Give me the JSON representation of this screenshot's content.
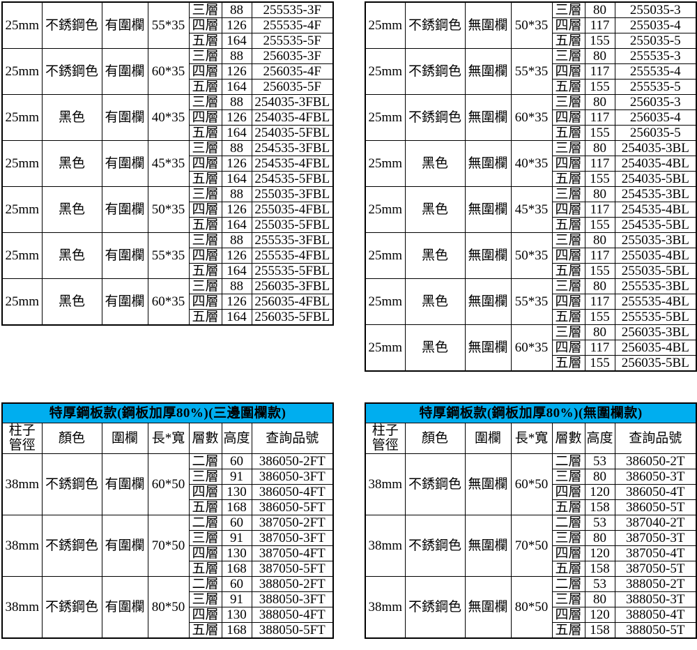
{
  "styles": {
    "title_bar_bg": "#00AEEF",
    "title_text_color": "#000000",
    "border_color": "#000000",
    "page_bg": "#ffffff"
  },
  "tables": {
    "top_left": {
      "rows": [
        {
          "diameter": "25mm",
          "color": "不銹鋼色",
          "fence": "有圍欄",
          "size": "55*35",
          "layers": [
            {
              "tier": "三層",
              "height": "88",
              "code": "255535-3F"
            },
            {
              "tier": "四層",
              "height": "126",
              "code": "255535-4F"
            },
            {
              "tier": "五層",
              "height": "164",
              "code": "255535-5F"
            }
          ]
        },
        {
          "diameter": "25mm",
          "color": "不銹鋼色",
          "fence": "有圍欄",
          "size": "60*35",
          "layers": [
            {
              "tier": "三層",
              "height": "88",
              "code": "256035-3F"
            },
            {
              "tier": "四層",
              "height": "126",
              "code": "256035-4F"
            },
            {
              "tier": "五層",
              "height": "164",
              "code": "256035-5F"
            }
          ]
        },
        {
          "diameter": "25mm",
          "color": "黑色",
          "fence": "有圍欄",
          "size": "40*35",
          "layers": [
            {
              "tier": "三層",
              "height": "88",
              "code": "254035-3FBL"
            },
            {
              "tier": "四層",
              "height": "126",
              "code": "254035-4FBL"
            },
            {
              "tier": "五層",
              "height": "164",
              "code": "254035-5FBL"
            }
          ]
        },
        {
          "diameter": "25mm",
          "color": "黑色",
          "fence": "有圍欄",
          "size": "45*35",
          "layers": [
            {
              "tier": "三層",
              "height": "88",
              "code": "254535-3FBL"
            },
            {
              "tier": "四層",
              "height": "126",
              "code": "254535-4FBL"
            },
            {
              "tier": "五層",
              "height": "164",
              "code": "254535-5FBL"
            }
          ]
        },
        {
          "diameter": "25mm",
          "color": "黑色",
          "fence": "有圍欄",
          "size": "50*35",
          "layers": [
            {
              "tier": "三層",
              "height": "88",
              "code": "255035-3FBL"
            },
            {
              "tier": "四層",
              "height": "126",
              "code": "255035-4FBL"
            },
            {
              "tier": "五層",
              "height": "164",
              "code": "255035-5FBL"
            }
          ]
        },
        {
          "diameter": "25mm",
          "color": "黑色",
          "fence": "有圍欄",
          "size": "55*35",
          "layers": [
            {
              "tier": "三層",
              "height": "88",
              "code": "255535-3FBL"
            },
            {
              "tier": "四層",
              "height": "126",
              "code": "255535-4FBL"
            },
            {
              "tier": "五層",
              "height": "164",
              "code": "255535-5FBL"
            }
          ]
        },
        {
          "diameter": "25mm",
          "color": "黑色",
          "fence": "有圍欄",
          "size": "60*35",
          "layers": [
            {
              "tier": "三層",
              "height": "88",
              "code": "256035-3FBL"
            },
            {
              "tier": "四層",
              "height": "126",
              "code": "256035-4FBL"
            },
            {
              "tier": "五層",
              "height": "164",
              "code": "256035-5FBL"
            }
          ]
        }
      ]
    },
    "top_right": {
      "rows": [
        {
          "diameter": "25mm",
          "color": "不銹鋼色",
          "fence": "無圍欄",
          "size": "50*35",
          "layers": [
            {
              "tier": "三層",
              "height": "80",
              "code": "255035-3"
            },
            {
              "tier": "四層",
              "height": "117",
              "code": "255035-4"
            },
            {
              "tier": "五層",
              "height": "155",
              "code": "255035-5"
            }
          ]
        },
        {
          "diameter": "25mm",
          "color": "不銹鋼色",
          "fence": "無圍欄",
          "size": "55*35",
          "layers": [
            {
              "tier": "三層",
              "height": "80",
              "code": "255535-3"
            },
            {
              "tier": "四層",
              "height": "117",
              "code": "255535-4"
            },
            {
              "tier": "五層",
              "height": "155",
              "code": "255535-5"
            }
          ]
        },
        {
          "diameter": "25mm",
          "color": "不銹鋼色",
          "fence": "無圍欄",
          "size": "60*35",
          "layers": [
            {
              "tier": "三層",
              "height": "80",
              "code": "256035-3"
            },
            {
              "tier": "四層",
              "height": "117",
              "code": "256035-4"
            },
            {
              "tier": "五層",
              "height": "155",
              "code": "256035-5"
            }
          ]
        },
        {
          "diameter": "25mm",
          "color": "黑色",
          "fence": "無圍欄",
          "size": "40*35",
          "layers": [
            {
              "tier": "三層",
              "height": "80",
              "code": "254035-3BL"
            },
            {
              "tier": "四層",
              "height": "117",
              "code": "254035-4BL"
            },
            {
              "tier": "五層",
              "height": "155",
              "code": "254035-5BL"
            }
          ]
        },
        {
          "diameter": "25mm",
          "color": "黑色",
          "fence": "無圍欄",
          "size": "45*35",
          "layers": [
            {
              "tier": "三層",
              "height": "80",
              "code": "254535-3BL"
            },
            {
              "tier": "四層",
              "height": "117",
              "code": "254535-4BL"
            },
            {
              "tier": "五層",
              "height": "155",
              "code": "254535-5BL"
            }
          ]
        },
        {
          "diameter": "25mm",
          "color": "黑色",
          "fence": "無圍欄",
          "size": "50*35",
          "layers": [
            {
              "tier": "三層",
              "height": "80",
              "code": "255035-3BL"
            },
            {
              "tier": "四層",
              "height": "117",
              "code": "255035-4BL"
            },
            {
              "tier": "五層",
              "height": "155",
              "code": "255035-5BL"
            }
          ]
        },
        {
          "diameter": "25mm",
          "color": "黑色",
          "fence": "無圍欄",
          "size": "55*35",
          "layers": [
            {
              "tier": "三層",
              "height": "80",
              "code": "255535-3BL"
            },
            {
              "tier": "四層",
              "height": "117",
              "code": "255535-4BL"
            },
            {
              "tier": "五層",
              "height": "155",
              "code": "255535-5BL"
            }
          ]
        },
        {
          "diameter": "25mm",
          "color": "黑色",
          "fence": "無圍欄",
          "size": "60*35",
          "layers": [
            {
              "tier": "三層",
              "height": "80",
              "code": "256035-3BL"
            },
            {
              "tier": "四層",
              "height": "117",
              "code": "256035-4BL"
            },
            {
              "tier": "五層",
              "height": "155",
              "code": "256035-5BL"
            }
          ]
        }
      ]
    },
    "bottom_left": {
      "title": "特厚鋼板款(鋼板加厚80%)(三邊圍欄款)",
      "columns": [
        "柱子\n管徑",
        "顏色",
        "圍欄",
        "長*寬",
        "層數",
        "高度",
        "查詢品號"
      ],
      "rows": [
        {
          "diameter": "38mm",
          "color": "不銹鋼色",
          "fence": "有圍欄",
          "size": "60*50",
          "layers": [
            {
              "tier": "二層",
              "height": "60",
              "code": "386050-2FT"
            },
            {
              "tier": "三層",
              "height": "91",
              "code": "386050-3FT"
            },
            {
              "tier": "四層",
              "height": "130",
              "code": "386050-4FT"
            },
            {
              "tier": "五層",
              "height": "168",
              "code": "386050-5FT"
            }
          ]
        },
        {
          "diameter": "38mm",
          "color": "不銹鋼色",
          "fence": "有圍欄",
          "size": "70*50",
          "layers": [
            {
              "tier": "二層",
              "height": "60",
              "code": "387050-2FT"
            },
            {
              "tier": "三層",
              "height": "91",
              "code": "387050-3FT"
            },
            {
              "tier": "四層",
              "height": "130",
              "code": "387050-4FT"
            },
            {
              "tier": "五層",
              "height": "168",
              "code": "387050-5FT"
            }
          ]
        },
        {
          "diameter": "38mm",
          "color": "不銹鋼色",
          "fence": "有圍欄",
          "size": "80*50",
          "layers": [
            {
              "tier": "二層",
              "height": "60",
              "code": "388050-2FT"
            },
            {
              "tier": "三層",
              "height": "91",
              "code": "388050-3FT"
            },
            {
              "tier": "四層",
              "height": "130",
              "code": "388050-4FT"
            },
            {
              "tier": "五層",
              "height": "168",
              "code": "388050-5FT"
            }
          ]
        }
      ]
    },
    "bottom_right": {
      "title": "特厚鋼板款(鋼板加厚80%)(無圍欄款)",
      "columns": [
        "柱子\n管徑",
        "顏色",
        "圍欄",
        "長*寬",
        "層數",
        "高度",
        "查詢品號"
      ],
      "rows": [
        {
          "diameter": "38mm",
          "color": "不銹鋼色",
          "fence": "無圍欄",
          "size": "60*50",
          "layers": [
            {
              "tier": "二層",
              "height": "53",
              "code": "386050-2T"
            },
            {
              "tier": "三層",
              "height": "80",
              "code": "386050-3T"
            },
            {
              "tier": "四層",
              "height": "120",
              "code": "386050-4T"
            },
            {
              "tier": "五層",
              "height": "158",
              "code": "386050-5T"
            }
          ]
        },
        {
          "diameter": "38mm",
          "color": "不銹鋼色",
          "fence": "無圍欄",
          "size": "70*50",
          "layers": [
            {
              "tier": "二層",
              "height": "53",
              "code": "387040-2T"
            },
            {
              "tier": "三層",
              "height": "80",
              "code": "387050-3T"
            },
            {
              "tier": "四層",
              "height": "120",
              "code": "387050-4T"
            },
            {
              "tier": "五層",
              "height": "158",
              "code": "387050-5T"
            }
          ]
        },
        {
          "diameter": "38mm",
          "color": "不銹鋼色",
          "fence": "無圍欄",
          "size": "80*50",
          "layers": [
            {
              "tier": "二層",
              "height": "53",
              "code": "388050-2T"
            },
            {
              "tier": "三層",
              "height": "80",
              "code": "388050-3T"
            },
            {
              "tier": "四層",
              "height": "120",
              "code": "388050-4T"
            },
            {
              "tier": "五層",
              "height": "158",
              "code": "388050-5T"
            }
          ]
        }
      ]
    }
  }
}
